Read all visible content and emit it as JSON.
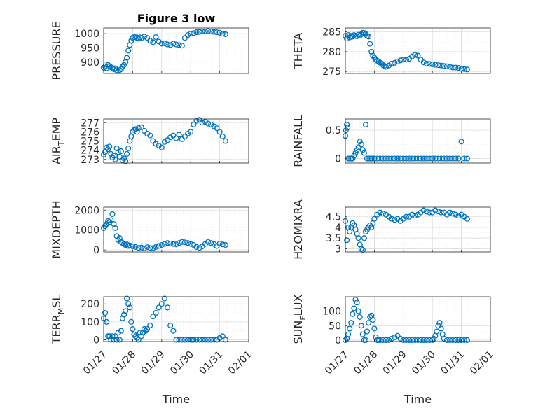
{
  "chart_data": [
    {
      "type": "scatter",
      "title": "Figure 3 low",
      "ylabel": "PRESSURE",
      "xlabel": "",
      "xlim": [
        0,
        5
      ],
      "ylim": [
        860,
        1020
      ],
      "yticks": [
        900,
        950,
        1000
      ],
      "x": [
        0.0,
        0.05,
        0.1,
        0.15,
        0.2,
        0.25,
        0.3,
        0.35,
        0.4,
        0.45,
        0.5,
        0.55,
        0.6,
        0.65,
        0.7,
        0.75,
        0.8,
        0.85,
        0.9,
        0.95,
        1.0,
        1.05,
        1.1,
        1.15,
        1.2,
        1.25,
        1.3,
        1.4,
        1.5,
        1.6,
        1.7,
        1.8,
        1.9,
        2.0,
        2.1,
        2.2,
        2.3,
        2.4,
        2.5,
        2.6,
        2.7,
        2.8,
        2.9,
        3.0,
        3.1,
        3.2,
        3.3,
        3.4,
        3.5,
        3.6,
        3.7,
        3.8,
        3.9,
        4.0,
        4.1,
        4.2
      ],
      "y": [
        880,
        885,
        878,
        890,
        886,
        882,
        880,
        875,
        878,
        871,
        868,
        872,
        875,
        884,
        890,
        900,
        915,
        940,
        960,
        975,
        985,
        988,
        990,
        985,
        982,
        987,
        984,
        990,
        985,
        975,
        970,
        988,
        972,
        965,
        966,
        962,
        960,
        965,
        962,
        960,
        958,
        985,
        995,
        1000,
        1002,
        1005,
        1006,
        1008,
        1008,
        1009,
        1008,
        1006,
        1005,
        1003,
        1000,
        998
      ]
    },
    {
      "type": "scatter",
      "title": "",
      "ylabel": "THETA",
      "xlabel": "",
      "xlim": [
        0,
        5
      ],
      "ylim": [
        274.5,
        286
      ],
      "yticks": [
        275,
        280,
        285
      ],
      "x": [
        0.0,
        0.05,
        0.1,
        0.15,
        0.2,
        0.25,
        0.3,
        0.35,
        0.4,
        0.45,
        0.5,
        0.55,
        0.6,
        0.65,
        0.7,
        0.75,
        0.8,
        0.85,
        0.9,
        0.95,
        1.0,
        1.05,
        1.1,
        1.15,
        1.2,
        1.25,
        1.3,
        1.35,
        1.4,
        1.5,
        1.6,
        1.7,
        1.8,
        1.9,
        2.0,
        2.1,
        2.2,
        2.3,
        2.4,
        2.5,
        2.6,
        2.7,
        2.8,
        2.9,
        3.0,
        3.1,
        3.2,
        3.3,
        3.4,
        3.5,
        3.6,
        3.7,
        3.8,
        3.9,
        4.0,
        4.1,
        4.2
      ],
      "y": [
        284.0,
        283.3,
        284.2,
        283.6,
        284.0,
        283.8,
        284.2,
        284.0,
        283.9,
        284.3,
        284.1,
        284.4,
        284.8,
        284.7,
        284.5,
        284.0,
        283.8,
        282.0,
        280.0,
        279.0,
        278.5,
        278.0,
        277.7,
        277.5,
        277.2,
        277.0,
        276.6,
        276.4,
        276.2,
        276.5,
        277.0,
        277.2,
        277.5,
        277.8,
        278.0,
        278.0,
        278.2,
        278.8,
        279.2,
        279.0,
        278.0,
        277.3,
        277.0,
        276.9,
        276.8,
        276.7,
        276.6,
        276.5,
        276.4,
        276.3,
        276.2,
        276.0,
        276.0,
        275.9,
        275.7,
        275.6,
        275.5
      ]
    },
    {
      "type": "scatter",
      "title": "",
      "ylabel": "AIR_TEMP",
      "xlabel": "",
      "xlim": [
        0,
        5
      ],
      "ylim": [
        272.6,
        277.4
      ],
      "yticks": [
        273,
        274,
        275,
        276,
        277
      ],
      "x": [
        0.0,
        0.05,
        0.1,
        0.15,
        0.2,
        0.25,
        0.3,
        0.35,
        0.4,
        0.45,
        0.5,
        0.55,
        0.6,
        0.65,
        0.7,
        0.75,
        0.8,
        0.85,
        0.9,
        0.95,
        1.0,
        1.05,
        1.1,
        1.15,
        1.2,
        1.3,
        1.4,
        1.5,
        1.6,
        1.7,
        1.8,
        1.9,
        2.0,
        2.1,
        2.2,
        2.3,
        2.4,
        2.5,
        2.6,
        2.7,
        2.8,
        2.9,
        3.0,
        3.1,
        3.2,
        3.3,
        3.4,
        3.5,
        3.6,
        3.7,
        3.8,
        3.9,
        4.0,
        4.1,
        4.2
      ],
      "y": [
        273.5,
        273.8,
        274.3,
        274.1,
        274.4,
        273.6,
        273.2,
        273.4,
        273.0,
        274.2,
        273.8,
        273.3,
        273.9,
        272.9,
        273.1,
        272.8,
        273.6,
        274.2,
        275.0,
        275.5,
        276.0,
        276.2,
        276.3,
        276.0,
        276.4,
        276.5,
        276.1,
        275.8,
        275.6,
        275.0,
        274.7,
        274.5,
        274.3,
        274.9,
        275.1,
        275.4,
        275.6,
        275.3,
        275.7,
        275.2,
        275.5,
        275.8,
        276.0,
        276.8,
        277.2,
        277.3,
        277.0,
        277.1,
        276.9,
        276.8,
        276.6,
        276.4,
        276.0,
        275.5,
        275.0
      ]
    },
    {
      "type": "scatter",
      "title": "",
      "ylabel": "RAINFALL",
      "xlabel": "",
      "xlim": [
        0,
        5
      ],
      "ylim": [
        -0.08,
        0.7
      ],
      "yticks": [
        0,
        0.5
      ],
      "x": [
        0.0,
        0.02,
        0.05,
        0.08,
        0.1,
        0.15,
        0.2,
        0.25,
        0.3,
        0.35,
        0.4,
        0.45,
        0.5,
        0.55,
        0.6,
        0.65,
        0.7,
        0.75,
        0.8,
        0.85,
        0.9,
        0.95,
        1.0,
        1.1,
        1.2,
        1.3,
        1.4,
        1.5,
        1.6,
        1.7,
        1.8,
        1.9,
        2.0,
        2.1,
        2.2,
        2.3,
        2.4,
        2.5,
        2.6,
        2.7,
        2.8,
        2.9,
        3.0,
        3.1,
        3.2,
        3.3,
        3.4,
        3.5,
        3.6,
        3.7,
        3.8,
        3.9,
        4.0,
        4.1,
        4.2
      ],
      "y": [
        0.4,
        0.5,
        0.6,
        0.55,
        0,
        0,
        0,
        0,
        0.05,
        0.1,
        0.15,
        0.2,
        0.3,
        0.25,
        0.15,
        0.1,
        0.6,
        0,
        0,
        0,
        0,
        0,
        0,
        0,
        0,
        0,
        0,
        0,
        0,
        0,
        0,
        0,
        0,
        0,
        0,
        0,
        0,
        0,
        0,
        0,
        0,
        0,
        0,
        0,
        0,
        0,
        0,
        0,
        0,
        0,
        0,
        0,
        0.3,
        0,
        0
      ]
    },
    {
      "type": "scatter",
      "title": "",
      "ylabel": "MIXDEPTH",
      "xlabel": "",
      "xlim": [
        0,
        5
      ],
      "ylim": [
        -100,
        2150
      ],
      "yticks": [
        0,
        1000,
        2000
      ],
      "x": [
        0.0,
        0.05,
        0.1,
        0.15,
        0.2,
        0.25,
        0.3,
        0.35,
        0.4,
        0.45,
        0.5,
        0.55,
        0.6,
        0.65,
        0.7,
        0.75,
        0.8,
        0.85,
        0.9,
        1.0,
        1.1,
        1.2,
        1.3,
        1.4,
        1.5,
        1.6,
        1.7,
        1.8,
        1.9,
        2.0,
        2.1,
        2.2,
        2.3,
        2.4,
        2.5,
        2.6,
        2.7,
        2.8,
        2.9,
        3.0,
        3.1,
        3.2,
        3.3,
        3.4,
        3.5,
        3.6,
        3.7,
        3.8,
        3.9,
        4.0,
        4.1,
        4.2
      ],
      "y": [
        1100,
        1200,
        1300,
        1450,
        1400,
        1500,
        1800,
        1300,
        1100,
        700,
        500,
        600,
        400,
        350,
        300,
        250,
        280,
        200,
        230,
        180,
        150,
        100,
        120,
        80,
        140,
        100,
        90,
        150,
        200,
        250,
        300,
        350,
        320,
        300,
        280,
        350,
        400,
        380,
        350,
        300,
        250,
        150,
        100,
        180,
        300,
        400,
        350,
        300,
        200,
        320,
        280,
        250
      ]
    },
    {
      "type": "scatter",
      "title": "",
      "ylabel": "H2OMIXRA",
      "xlabel": "",
      "xlim": [
        0,
        5
      ],
      "ylim": [
        2.85,
        4.95
      ],
      "yticks": [
        3,
        3.5,
        4,
        4.5
      ],
      "x": [
        0.0,
        0.05,
        0.1,
        0.15,
        0.2,
        0.25,
        0.3,
        0.35,
        0.4,
        0.45,
        0.5,
        0.55,
        0.6,
        0.65,
        0.7,
        0.75,
        0.8,
        0.85,
        0.9,
        0.95,
        1.0,
        1.1,
        1.2,
        1.3,
        1.4,
        1.5,
        1.6,
        1.7,
        1.8,
        1.9,
        2.0,
        2.1,
        2.2,
        2.3,
        2.4,
        2.5,
        2.6,
        2.7,
        2.8,
        2.9,
        3.0,
        3.1,
        3.2,
        3.3,
        3.4,
        3.5,
        3.6,
        3.7,
        3.8,
        3.9,
        4.0,
        4.1,
        4.2
      ],
      "y": [
        4.3,
        3.4,
        4.0,
        3.8,
        4.0,
        4.2,
        4.1,
        3.9,
        3.7,
        3.5,
        3.2,
        3.0,
        2.95,
        3.5,
        3.8,
        3.9,
        4.0,
        4.1,
        4.0,
        4.2,
        4.4,
        4.6,
        4.7,
        4.65,
        4.6,
        4.5,
        4.4,
        4.35,
        4.4,
        4.3,
        4.4,
        4.5,
        4.5,
        4.6,
        4.55,
        4.6,
        4.7,
        4.8,
        4.75,
        4.7,
        4.7,
        4.8,
        4.75,
        4.7,
        4.7,
        4.6,
        4.7,
        4.65,
        4.6,
        4.55,
        4.6,
        4.5,
        4.4
      ]
    },
    {
      "type": "scatter",
      "title": "",
      "ylabel": "TERR_MSL",
      "xlabel": "Time",
      "xlim": [
        0,
        5
      ],
      "ylim": [
        -10,
        240
      ],
      "yticks": [
        0,
        100,
        200
      ],
      "xticklabels": [
        "01/27",
        "01/28",
        "01/29",
        "01/30",
        "01/31",
        "02/01"
      ],
      "x": [
        0.0,
        0.05,
        0.1,
        0.15,
        0.2,
        0.25,
        0.3,
        0.35,
        0.4,
        0.45,
        0.5,
        0.55,
        0.6,
        0.65,
        0.7,
        0.75,
        0.8,
        0.85,
        0.9,
        0.95,
        1.0,
        1.05,
        1.1,
        1.15,
        1.2,
        1.25,
        1.3,
        1.35,
        1.4,
        1.45,
        1.5,
        1.6,
        1.7,
        1.8,
        1.9,
        2.0,
        2.1,
        2.2,
        2.3,
        2.4,
        2.5,
        2.6,
        2.7,
        2.8,
        2.9,
        3.0,
        3.05,
        3.1,
        3.2,
        3.3,
        3.4,
        3.5,
        3.6,
        3.7,
        3.8,
        3.9,
        4.0,
        4.1,
        4.2
      ],
      "y": [
        120,
        150,
        100,
        20,
        20,
        0,
        20,
        0,
        20,
        0,
        40,
        0,
        50,
        120,
        140,
        160,
        230,
        200,
        180,
        100,
        60,
        30,
        20,
        10,
        0,
        40,
        20,
        40,
        60,
        50,
        60,
        80,
        130,
        150,
        180,
        200,
        230,
        180,
        80,
        50,
        0,
        0,
        0,
        0,
        0,
        0,
        0,
        0,
        0,
        0,
        0,
        0,
        0,
        0,
        0,
        0,
        10,
        20,
        0
      ]
    },
    {
      "type": "scatter",
      "title": "",
      "ylabel": "SUN_FLUX",
      "xlabel": "Time",
      "xlim": [
        0,
        5
      ],
      "ylim": [
        -5,
        150
      ],
      "yticks": [
        0,
        50,
        100
      ],
      "xticklabels": [
        "01/27",
        "01/28",
        "01/29",
        "01/30",
        "01/31",
        "02/01"
      ],
      "x": [
        0.0,
        0.05,
        0.1,
        0.15,
        0.2,
        0.25,
        0.3,
        0.35,
        0.4,
        0.45,
        0.5,
        0.55,
        0.6,
        0.65,
        0.7,
        0.75,
        0.8,
        0.85,
        0.9,
        0.95,
        1.0,
        1.05,
        1.1,
        1.15,
        1.2,
        1.3,
        1.4,
        1.5,
        1.6,
        1.7,
        1.8,
        1.9,
        2.0,
        2.1,
        2.2,
        2.3,
        2.4,
        2.5,
        2.6,
        2.7,
        2.8,
        2.9,
        3.0,
        3.05,
        3.1,
        3.15,
        3.2,
        3.25,
        3.3,
        3.35,
        3.4,
        3.5,
        3.6,
        3.7,
        3.8,
        3.9,
        4.0,
        4.1,
        4.2
      ],
      "y": [
        0,
        5,
        20,
        40,
        60,
        90,
        110,
        140,
        130,
        100,
        80,
        50,
        20,
        0,
        0,
        30,
        60,
        80,
        85,
        70,
        40,
        10,
        0,
        0,
        0,
        0,
        0,
        0,
        5,
        10,
        15,
        5,
        0,
        0,
        0,
        0,
        0,
        0,
        0,
        0,
        0,
        0,
        0,
        5,
        15,
        30,
        50,
        60,
        40,
        20,
        5,
        0,
        0,
        0,
        0,
        0,
        0,
        0,
        0
      ]
    }
  ]
}
